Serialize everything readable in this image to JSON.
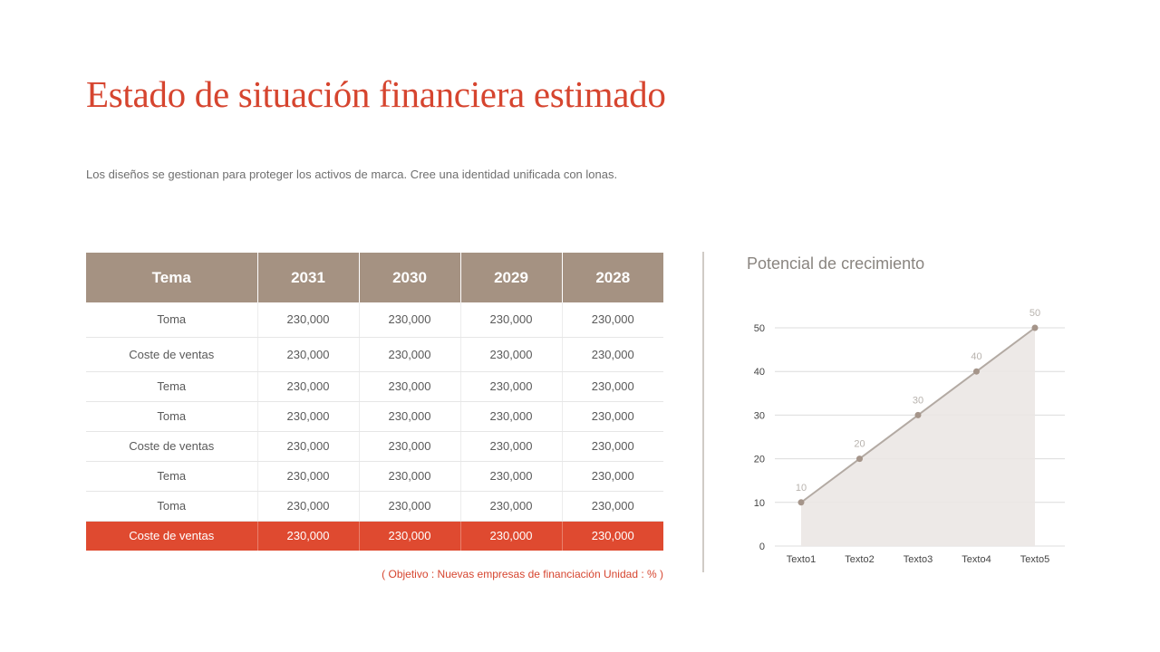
{
  "title": "Estado de situación financiera estimado",
  "subtitle": "Los diseños se gestionan para proteger los activos de marca. Cree una identidad unificada con lonas.",
  "table": {
    "headers": [
      "Tema",
      "2031",
      "2030",
      "2029",
      "2028"
    ],
    "rows": [
      [
        "Toma",
        "230,000",
        "230,000",
        "230,000",
        "230,000"
      ],
      [
        "Coste de ventas",
        "230,000",
        "230,000",
        "230,000",
        "230,000"
      ],
      [
        "Tema",
        "230,000",
        "230,000",
        "230,000",
        "230,000"
      ],
      [
        "Toma",
        "230,000",
        "230,000",
        "230,000",
        "230,000"
      ],
      [
        "Coste de ventas",
        "230,000",
        "230,000",
        "230,000",
        "230,000"
      ],
      [
        "Tema",
        "230,000",
        "230,000",
        "230,000",
        "230,000"
      ],
      [
        "Toma",
        "230,000",
        "230,000",
        "230,000",
        "230,000"
      ],
      [
        "Coste de ventas",
        "230,000",
        "230,000",
        "230,000",
        "230,000"
      ]
    ],
    "note": "( Objetivo : Nuevas empresas de financiación Unidad : % )"
  },
  "colors": {
    "accent": "#d6452f",
    "header_bg": "#a59282",
    "highlight_row": "#df4a30",
    "line": "#b3aaa3",
    "area": "#ebe7e4",
    "point": "#a5958a"
  },
  "chart_data": {
    "type": "area",
    "title": "Potencial de crecimiento",
    "categories": [
      "Texto1",
      "Texto2",
      "Texto3",
      "Texto4",
      "Texto5"
    ],
    "values": [
      10,
      20,
      30,
      40,
      50
    ],
    "data_labels": [
      "10",
      "20",
      "30",
      "40",
      "50"
    ],
    "yticks": [
      "0",
      "10",
      "20",
      "30",
      "40",
      "50"
    ],
    "ylim": [
      0,
      50
    ],
    "grid": true,
    "legend": "none"
  }
}
